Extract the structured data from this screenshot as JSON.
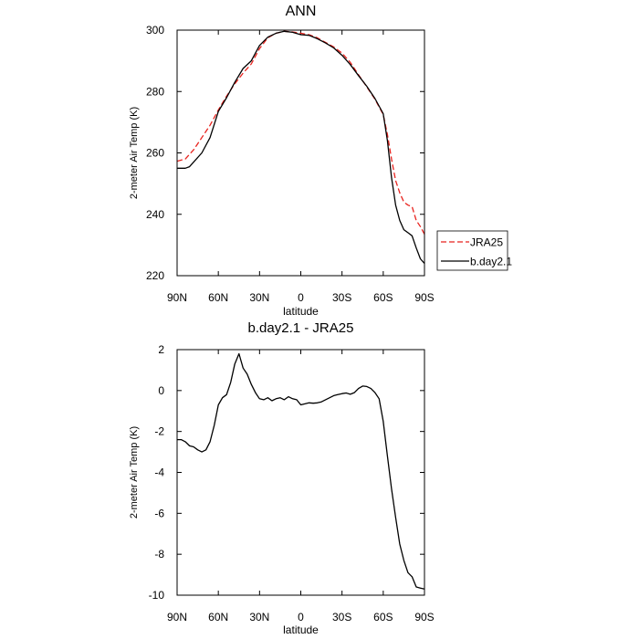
{
  "chart_data": [
    {
      "type": "line",
      "title": "ANN",
      "xlabel": "latitude",
      "ylabel": "2-meter Air Temp (K)",
      "xlim": [
        90,
        -90
      ],
      "ylim": [
        220,
        300
      ],
      "x_ticks": [
        90,
        60,
        30,
        0,
        -30,
        -60,
        -90
      ],
      "x_tick_labels": [
        "90N",
        "60N",
        "30N",
        "0",
        "30S",
        "60S",
        "90S"
      ],
      "y_ticks": [
        220,
        240,
        260,
        280,
        300
      ],
      "y_tick_labels": [
        "220",
        "240",
        "260",
        "280",
        "300"
      ],
      "legend_position": "outside-right",
      "series": [
        {
          "name": "JRA25",
          "color": "#e8231e",
          "dash": "dashed",
          "x": [
            90,
            84,
            78,
            72,
            66,
            60,
            54,
            48,
            42,
            36,
            30,
            24,
            18,
            12,
            6,
            0,
            -6,
            -12,
            -18,
            -24,
            -30,
            -36,
            -42,
            -48,
            -54,
            -60,
            -63,
            -66,
            -69,
            -72,
            -75,
            -78,
            -81,
            -84,
            -87,
            -90
          ],
          "y": [
            257.3,
            258,
            261,
            265,
            269,
            274,
            278.5,
            282.5,
            286,
            289,
            294,
            297.5,
            299,
            299.6,
            299.4,
            299,
            298.5,
            297.5,
            296,
            294.5,
            292.5,
            289.5,
            285.5,
            281.5,
            277.5,
            272.5,
            266,
            258,
            251,
            247,
            244,
            243,
            242.5,
            238,
            236,
            233.5
          ]
        },
        {
          "name": "b.day2.1",
          "color": "#000000",
          "dash": "solid",
          "x": [
            90,
            84,
            81,
            78,
            72,
            66,
            60,
            54,
            48,
            42,
            36,
            30,
            24,
            18,
            12,
            6,
            0,
            -6,
            -12,
            -18,
            -24,
            -30,
            -36,
            -42,
            -48,
            -54,
            -60,
            -63,
            -66,
            -69,
            -72,
            -75,
            -78,
            -81,
            -84,
            -87,
            -90
          ],
          "y": [
            255,
            255,
            255.5,
            257,
            260,
            265,
            273.5,
            278,
            283,
            287.5,
            290,
            295,
            297.7,
            299,
            299.6,
            299.3,
            298.5,
            298.3,
            297.2,
            295.8,
            294.2,
            291.8,
            288.8,
            285.2,
            281.7,
            277.7,
            272.8,
            264,
            252,
            243,
            238,
            235,
            234,
            233,
            229,
            225.5,
            224
          ]
        }
      ]
    },
    {
      "type": "line",
      "title": "b.day2.1 - JRA25",
      "xlabel": "latitude",
      "ylabel": "2-meter Air Temp (K)",
      "xlim": [
        90,
        -90
      ],
      "ylim": [
        -10,
        2
      ],
      "x_ticks": [
        90,
        60,
        30,
        0,
        -30,
        -60,
        -90
      ],
      "x_tick_labels": [
        "90N",
        "60N",
        "30N",
        "0",
        "30S",
        "60S",
        "90S"
      ],
      "y_ticks": [
        2,
        0,
        -2,
        -4,
        -6,
        -8,
        -10
      ],
      "y_tick_labels": [
        "2",
        "0",
        "-2",
        "-4",
        "-6",
        "-8",
        "-10"
      ],
      "series": [
        {
          "color": "#000000",
          "dash": "solid",
          "x": [
            90,
            87,
            84,
            81,
            78,
            75,
            72,
            69,
            66,
            63,
            60,
            57,
            54,
            51,
            48,
            45,
            42,
            39,
            36,
            33,
            30,
            27,
            24,
            21,
            18,
            15,
            12,
            9,
            6,
            3,
            0,
            -3,
            -6,
            -9,
            -12,
            -15,
            -18,
            -21,
            -24,
            -27,
            -30,
            -33,
            -36,
            -39,
            -42,
            -45,
            -48,
            -51,
            -54,
            -57,
            -60,
            -63,
            -66,
            -69,
            -72,
            -75,
            -78,
            -81,
            -84,
            -87,
            -90
          ],
          "y": [
            -2.4,
            -2.4,
            -2.5,
            -2.7,
            -2.75,
            -2.9,
            -3.0,
            -2.9,
            -2.5,
            -1.7,
            -0.7,
            -0.35,
            -0.2,
            0.4,
            1.3,
            1.8,
            1.1,
            0.8,
            0.3,
            -0.1,
            -0.4,
            -0.45,
            -0.35,
            -0.5,
            -0.4,
            -0.35,
            -0.45,
            -0.3,
            -0.4,
            -0.45,
            -0.7,
            -0.65,
            -0.6,
            -0.62,
            -0.6,
            -0.55,
            -0.45,
            -0.35,
            -0.25,
            -0.2,
            -0.15,
            -0.12,
            -0.18,
            -0.1,
            0.1,
            0.22,
            0.2,
            0.1,
            -0.1,
            -0.4,
            -1.5,
            -3.2,
            -4.8,
            -6.2,
            -7.5,
            -8.3,
            -8.9,
            -9.1,
            -9.6,
            -9.65,
            -9.7
          ]
        }
      ]
    }
  ]
}
